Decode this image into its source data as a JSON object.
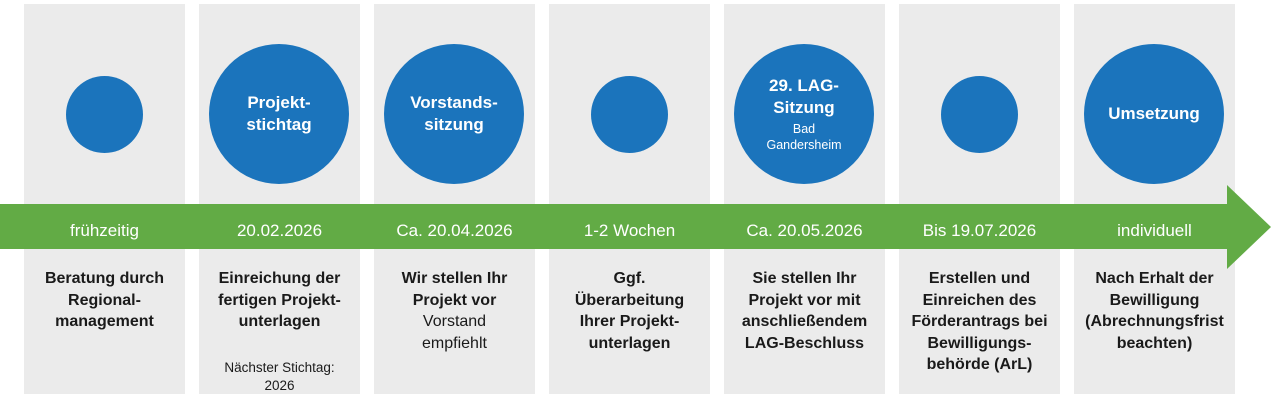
{
  "colors": {
    "circle_blue": "#1B74BC",
    "arrow_green": "#62AB45",
    "column_bg": "#EBEBEB",
    "text_dark": "#1A1A1A",
    "text_white": "#FFFFFF"
  },
  "steps": [
    {
      "id": "beratung",
      "circle": {
        "size": "small"
      },
      "band_label": "frühzeitig",
      "description": "Beratung durch\nRegional-\nmanagement"
    },
    {
      "id": "projektstichtag",
      "circle": {
        "size": "large",
        "title": "Projekt-\nstichtag"
      },
      "band_label": "20.02.2026",
      "description": "Einreichung der\nfertigen Projekt-\nunterlagen",
      "note": "Nächster Stichtag:\n2026"
    },
    {
      "id": "vorstandssitzung",
      "circle": {
        "size": "large",
        "title": "Vorstands-\nsitzung"
      },
      "band_label": "Ca. 20.04.2026",
      "description": "Wir stellen Ihr\nProjekt vor",
      "description_secondary": "Vorstand\nempfiehlt"
    },
    {
      "id": "ueberarbeitung",
      "circle": {
        "size": "small"
      },
      "band_label": "1-2 Wochen",
      "description": "Ggf.\nÜberarbeitung\nIhrer Projekt-\nunterlagen"
    },
    {
      "id": "lag-sitzung",
      "circle": {
        "size": "large",
        "title": "29. LAG-\nSitzung",
        "subtitle": "Bad\nGandersheim"
      },
      "band_label": "Ca. 20.05.2026",
      "description": "Sie stellen Ihr\nProjekt vor mit\nanschließendem\nLAG-Beschluss"
    },
    {
      "id": "foerderantrag",
      "circle": {
        "size": "small"
      },
      "band_label": "Bis 19.07.2026",
      "description": "Erstellen und\nEinreichen des\nFörderantrags bei\nBewilligungs-\nbehörde (ArL)"
    },
    {
      "id": "umsetzung",
      "circle": {
        "size": "large",
        "title": "Umsetzung"
      },
      "band_label": "individuell",
      "description": "Nach Erhalt der\nBewilligung\n(Abrechnungsfrist\nbeachten)"
    }
  ]
}
